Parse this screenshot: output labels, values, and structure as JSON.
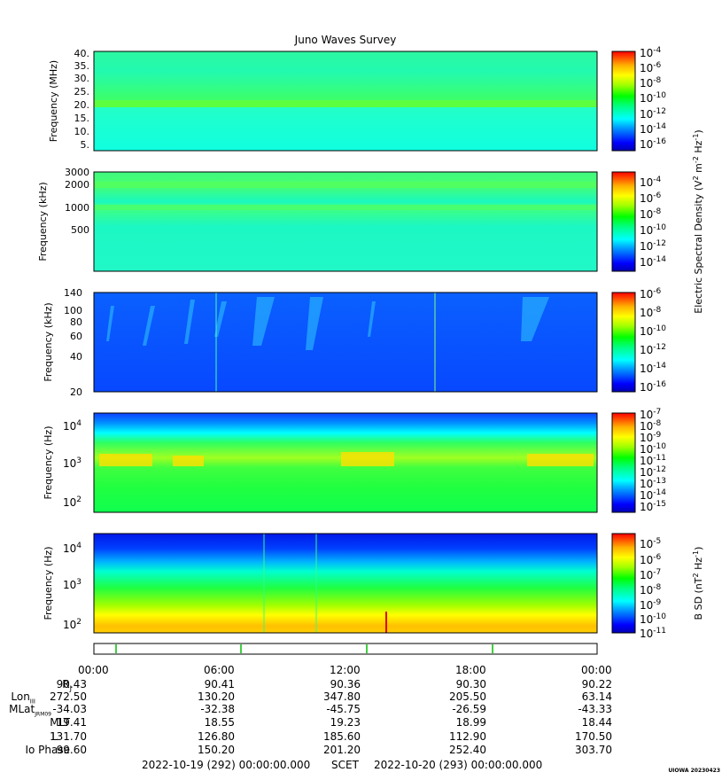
{
  "title": "Juno Waves Survey",
  "colors": {
    "background": "#ffffff",
    "palette": [
      "#0000b4",
      "#0000ff",
      "#0050ff",
      "#00a0ff",
      "#00ffff",
      "#00ff80",
      "#00ff00",
      "#a0ff00",
      "#ffff00",
      "#ffc000",
      "#ff7000",
      "#ff0000"
    ]
  },
  "panels": [
    {
      "ylabel": "Frequency (MHz)",
      "yticks": [
        "40.",
        "35.",
        "30.",
        "25.",
        "20.",
        "15.",
        "10.",
        "5."
      ],
      "colorbar_ticks": [
        "-4",
        "-6",
        "-8",
        "-10",
        "-12",
        "-14",
        "-16"
      ]
    },
    {
      "ylabel": "Frequency (kHz)",
      "yticks": [
        "3000",
        "2000",
        "1000",
        "500"
      ],
      "colorbar_ticks": [
        "-4",
        "-6",
        "-8",
        "-10",
        "-12",
        "-14"
      ]
    },
    {
      "ylabel": "Frequency (kHz)",
      "yticks": [
        "140",
        "100",
        "80",
        "60",
        "40",
        "20"
      ],
      "colorbar_ticks": [
        "-6",
        "-8",
        "-10",
        "-12",
        "-14",
        "-16"
      ]
    },
    {
      "ylabel": "Frequency (Hz)",
      "yticks": [
        "4",
        "3",
        "2"
      ],
      "colorbar_ticks": [
        "-7",
        "-8",
        "-9",
        "-10",
        "-11",
        "-12",
        "-13",
        "-14",
        "-15"
      ]
    },
    {
      "ylabel": "Frequency (Hz)",
      "yticks": [
        "4",
        "3",
        "2"
      ],
      "colorbar_ticks": [
        "-5",
        "-6",
        "-7",
        "-8",
        "-9",
        "-10",
        "-11"
      ]
    }
  ],
  "colorbar_labels": {
    "electric_base": "Electric Spectral Density (V",
    "electric_units": "m",
    "electric_hz": "Hz",
    "magnetic_base": "B SD (nT",
    "magnetic_hz": "Hz",
    "sup_2": "2",
    "sup_m2": "-2",
    "sup_m1": "-1",
    "close": ")",
    "power_base": "10"
  },
  "time_axis": {
    "ticks": [
      "00:00",
      "06:00",
      "12:00",
      "18:00",
      "00:00"
    ]
  },
  "ephemeris": [
    {
      "label": "R",
      "sub": "J",
      "values": [
        "90.43",
        "90.41",
        "90.36",
        "90.30",
        "90.22"
      ]
    },
    {
      "label": "Lon",
      "sub": "III",
      "values": [
        "272.50",
        "130.20",
        "347.80",
        "205.50",
        "63.14"
      ]
    },
    {
      "label": "MLat",
      "sub": "JRM09",
      "values": [
        "-34.03",
        "-32.38",
        "-45.75",
        "-26.59",
        "-43.33"
      ]
    },
    {
      "label": "MLT",
      "sub": "",
      "values": [
        "19.41",
        "18.55",
        "19.23",
        "18.99",
        "18.44"
      ]
    },
    {
      "label": "L",
      "sub": "",
      "values": [
        "131.70",
        "126.80",
        "185.60",
        "112.90",
        "170.50"
      ]
    },
    {
      "label": "Io Phase",
      "sub": "",
      "values": [
        "99.60",
        "150.20",
        "201.20",
        "252.40",
        "303.70"
      ]
    }
  ],
  "footer": {
    "start": "2022-10-19 (292) 00:00:00.000",
    "scet": "SCET",
    "end": "2022-10-20 (293) 00:00:00.000"
  },
  "credit": "UIOWA 20230423",
  "chart_data": [
    {
      "type": "heatmap",
      "title": "Juno Waves Survey",
      "ylabel": "Frequency (MHz)",
      "ylim": [
        3,
        41
      ],
      "xlim": [
        "2022-10-19 00:00",
        "2022-10-20 00:00"
      ],
      "colorbar_range_exponent": [
        -17,
        -4
      ]
    },
    {
      "type": "heatmap",
      "ylabel": "Frequency (kHz)",
      "ylim": [
        150,
        3000
      ],
      "yscale": "log",
      "xlim": [
        "2022-10-19 00:00",
        "2022-10-20 00:00"
      ],
      "colorbar_range_exponent": [
        -15,
        -3
      ]
    },
    {
      "type": "heatmap",
      "ylabel": "Frequency (kHz)",
      "ylim": [
        20,
        140
      ],
      "yscale": "log",
      "xlim": [
        "2022-10-19 00:00",
        "2022-10-20 00:00"
      ],
      "colorbar_range_exponent": [
        -17,
        -6
      ]
    },
    {
      "type": "heatmap",
      "ylabel": "Frequency (Hz)",
      "ylim": [
        50,
        20000
      ],
      "yscale": "log",
      "xlim": [
        "2022-10-19 00:00",
        "2022-10-20 00:00"
      ],
      "colorbar_range_exponent": [
        -15,
        -7
      ]
    },
    {
      "type": "heatmap",
      "ylabel": "Frequency (Hz)",
      "ylim": [
        50,
        20000
      ],
      "yscale": "log",
      "xlim": [
        "2022-10-19 00:00",
        "2022-10-20 00:00"
      ],
      "colorbar_range_exponent": [
        -11,
        -4.5
      ]
    }
  ]
}
